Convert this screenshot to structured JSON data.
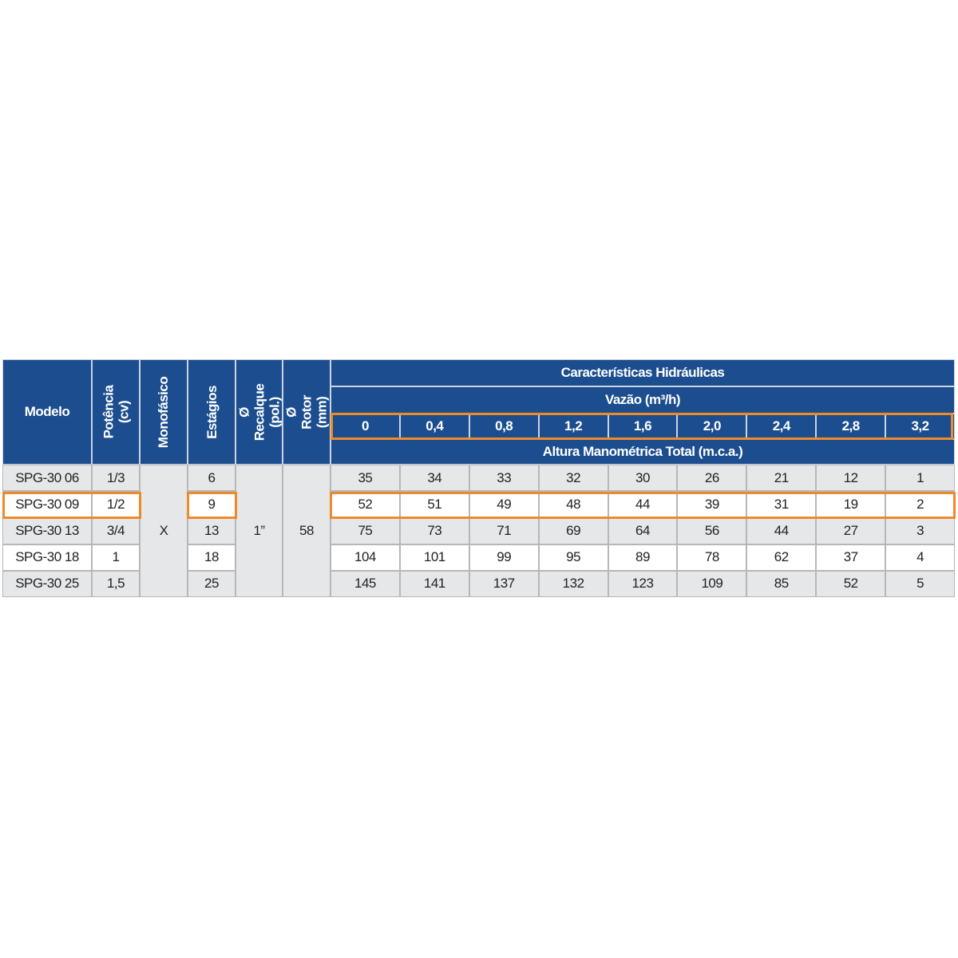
{
  "table": {
    "header": {
      "model": "Modelo",
      "power": "Potência (cv)",
      "single_phase": "Monofásico",
      "stages": "Estágios",
      "discharge": "Ø Recalque (pol.)",
      "rotor": "Ø Rotor (mm)",
      "hydraulic": "Características Hidráulicas",
      "flow_label": "Vazão (m³/h)",
      "flows": [
        "0",
        "0,4",
        "0,8",
        "1,2",
        "1,6",
        "2,0",
        "2,4",
        "2,8",
        "3,2"
      ],
      "head_label": "Altura Manométrica Total (m.c.a.)"
    },
    "single_phase": "X",
    "discharge": "1”",
    "rotor": "58",
    "rows": [
      {
        "model": "SPG-30 06",
        "power": "1/3",
        "stages": "6",
        "heads": [
          35,
          34,
          33,
          32,
          30,
          26,
          21,
          12,
          1
        ]
      },
      {
        "model": "SPG-30 09",
        "power": "1/2",
        "stages": "9",
        "heads": [
          52,
          51,
          49,
          48,
          44,
          39,
          31,
          19,
          2
        ]
      },
      {
        "model": "SPG-30 13",
        "power": "3/4",
        "stages": "13",
        "heads": [
          75,
          73,
          71,
          69,
          64,
          56,
          44,
          27,
          3
        ]
      },
      {
        "model": "SPG-30 18",
        "power": "1",
        "stages": "18",
        "heads": [
          104,
          101,
          99,
          95,
          89,
          78,
          62,
          37,
          4
        ]
      },
      {
        "model": "SPG-30 25",
        "power": "1,5",
        "stages": "25",
        "heads": [
          145,
          141,
          137,
          132,
          123,
          109,
          85,
          52,
          5
        ]
      }
    ]
  }
}
